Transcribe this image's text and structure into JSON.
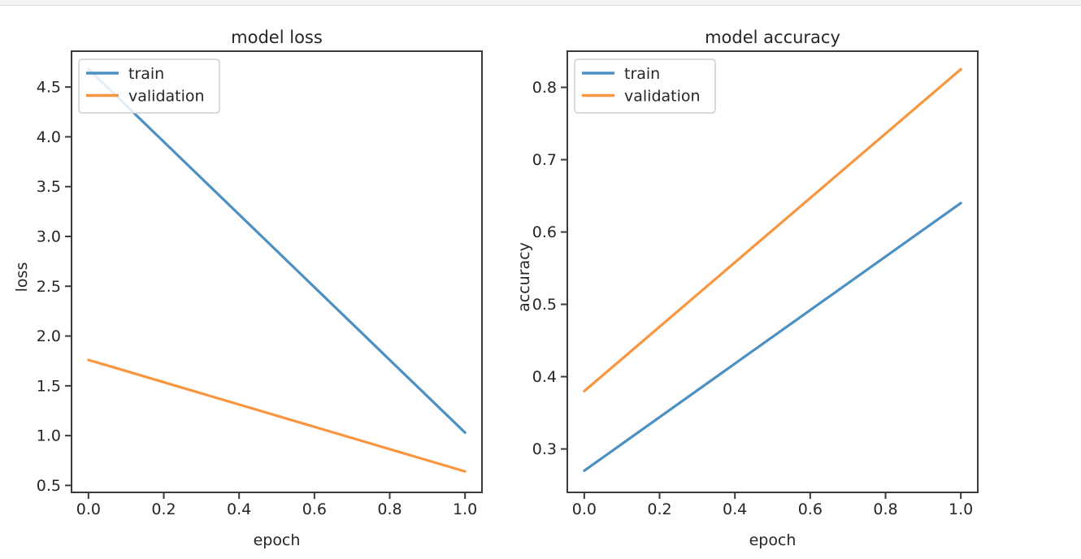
{
  "palette": {
    "background": "#ffffff",
    "top_strip_fill": "#f4f4f4",
    "top_strip_border": "#d9d9d9",
    "axis_color": "#3a3a3a",
    "text_color": "#262626",
    "legend_border": "#cfcfcf",
    "legend_fill": "#ffffff",
    "series": {
      "train": "#4b90c2",
      "validation": "#f8953f"
    }
  },
  "chart_data": [
    {
      "type": "line",
      "title": "model loss",
      "xlabel": "epoch",
      "ylabel": "loss",
      "x": [
        0,
        1
      ],
      "series": [
        {
          "name": "train",
          "values": [
            4.68,
            1.03
          ]
        },
        {
          "name": "validation",
          "values": [
            1.76,
            0.64
          ]
        }
      ],
      "xlim": [
        -0.045,
        1.045
      ],
      "ylim": [
        0.43,
        4.86
      ],
      "xticks": [
        0.0,
        0.2,
        0.4,
        0.6,
        0.8,
        1.0
      ],
      "yticks": [
        0.5,
        1.0,
        1.5,
        2.0,
        2.5,
        3.0,
        3.5,
        4.0,
        4.5
      ],
      "legend": {
        "entries": [
          "train",
          "validation"
        ],
        "position": "upper left"
      },
      "grid": false
    },
    {
      "type": "line",
      "title": "model accuracy",
      "xlabel": "epoch",
      "ylabel": "accuracy",
      "x": [
        0,
        1
      ],
      "series": [
        {
          "name": "train",
          "values": [
            0.27,
            0.64
          ]
        },
        {
          "name": "validation",
          "values": [
            0.38,
            0.825
          ]
        }
      ],
      "xlim": [
        -0.045,
        1.045
      ],
      "ylim": [
        0.24,
        0.85
      ],
      "xticks": [
        0.0,
        0.2,
        0.4,
        0.6,
        0.8,
        1.0
      ],
      "yticks": [
        0.3,
        0.4,
        0.5,
        0.6,
        0.7,
        0.8
      ],
      "legend": {
        "entries": [
          "train",
          "validation"
        ],
        "position": "upper left"
      },
      "grid": false
    }
  ]
}
